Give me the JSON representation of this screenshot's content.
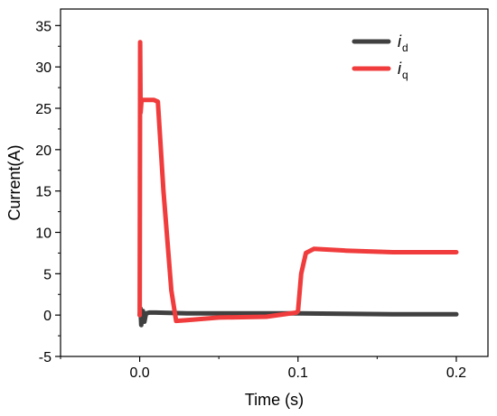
{
  "chart_data": {
    "type": "line",
    "xlabel": "Time (s)",
    "ylabel": "Current(A)",
    "xlim": [
      -0.05,
      0.22
    ],
    "ylim": [
      -5,
      37
    ],
    "xticks": [
      0.0,
      0.1,
      0.2
    ],
    "xtick_labels": [
      "0.0",
      "0.1",
      "0.2"
    ],
    "yticks": [
      -5,
      0,
      5,
      10,
      15,
      20,
      25,
      30,
      35
    ],
    "ytick_labels": [
      "-5",
      "0",
      "5",
      "10",
      "15",
      "20",
      "25",
      "30",
      "35"
    ],
    "grid": false,
    "legend_position": "top-right",
    "series": [
      {
        "name": "i_d",
        "label_main": "i",
        "label_sub": "d",
        "color": "#404040",
        "x": [
          0.0,
          0.0005,
          0.001,
          0.002,
          0.003,
          0.004,
          0.006,
          0.01,
          0.03,
          0.06,
          0.1,
          0.13,
          0.16,
          0.2
        ],
        "y": [
          0.0,
          0.8,
          -1.2,
          0.5,
          -0.8,
          0.2,
          0.3,
          0.3,
          0.2,
          0.2,
          0.2,
          0.15,
          0.1,
          0.1
        ]
      },
      {
        "name": "i_q",
        "label_main": "i",
        "label_sub": "q",
        "color": "#f03c3c",
        "x": [
          0.0,
          0.0003,
          0.0006,
          0.0012,
          0.003,
          0.006,
          0.009,
          0.0115,
          0.015,
          0.02,
          0.023,
          0.03,
          0.05,
          0.08,
          0.099,
          0.1,
          0.102,
          0.105,
          0.11,
          0.13,
          0.16,
          0.2
        ],
        "y": [
          0.0,
          33.0,
          24.5,
          26.0,
          26.0,
          26.0,
          26.0,
          25.8,
          15.0,
          3.0,
          -0.7,
          -0.6,
          -0.3,
          -0.2,
          0.3,
          0.5,
          5.0,
          7.5,
          8.0,
          7.8,
          7.6,
          7.6
        ]
      }
    ]
  }
}
